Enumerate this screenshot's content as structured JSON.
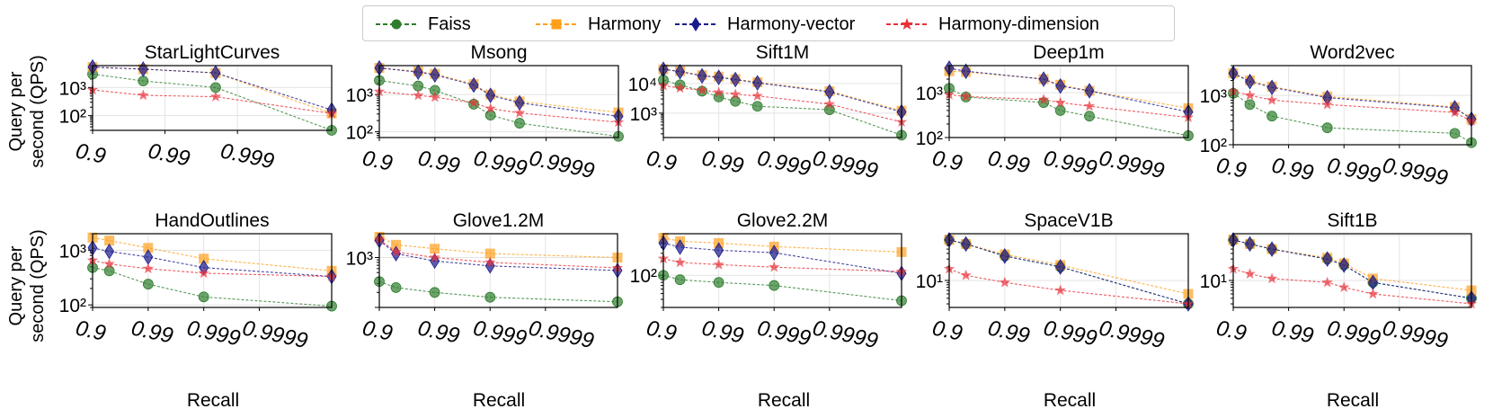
{
  "legend": {
    "items": [
      {
        "label": "Faiss",
        "color": "#2e7d2e",
        "marker": "circle"
      },
      {
        "label": "Harmony",
        "color": "#ff9f1c",
        "marker": "square"
      },
      {
        "label": "Harmony-vector",
        "color": "#1a1a8c",
        "marker": "diamond"
      },
      {
        "label": "Harmony-dimension",
        "color": "#e8323a",
        "marker": "star"
      }
    ]
  },
  "y_axis_label": [
    "Query per",
    "second (QPS)"
  ],
  "x_axis_label": "Recall",
  "chart_data": [
    {
      "type": "line",
      "title": "StarLightCurves",
      "xscale": "nines",
      "xlim": [
        0.9,
        0.99995
      ],
      "yscale": "log",
      "ylim": [
        30,
        6000
      ],
      "xticks": [
        "0.9",
        "0.99",
        "0.999"
      ],
      "yticks": [
        {
          "v": 100,
          "label": "10^2"
        },
        {
          "v": 1000,
          "label": "10^3"
        }
      ],
      "series": [
        {
          "name": "Faiss",
          "x": [
            0.9,
            0.98,
            0.998,
            0.99995
          ],
          "y": [
            3000,
            1700,
            1000,
            30
          ]
        },
        {
          "name": "Harmony",
          "x": [
            0.9,
            0.98,
            0.998,
            0.99995
          ],
          "y": [
            5300,
            4500,
            3300,
            120
          ]
        },
        {
          "name": "Harmony-vector",
          "x": [
            0.9,
            0.98,
            0.998,
            0.99995
          ],
          "y": [
            5300,
            4500,
            3300,
            160
          ]
        },
        {
          "name": "Harmony-dimension",
          "x": [
            0.9,
            0.98,
            0.998,
            0.99995
          ],
          "y": [
            820,
            530,
            470,
            120
          ]
        }
      ]
    },
    {
      "type": "line",
      "title": "Msong",
      "xscale": "nines",
      "xlim": [
        0.9,
        0.999995
      ],
      "yscale": "log",
      "ylim": [
        70,
        6000
      ],
      "xticks": [
        "0.9",
        "0.99",
        "0.999",
        "0.9999"
      ],
      "yticks": [
        {
          "v": 100,
          "label": "10^2"
        },
        {
          "v": 1000,
          "label": "10^3"
        }
      ],
      "series": [
        {
          "name": "Faiss",
          "x": [
            0.9,
            0.98,
            0.99,
            0.998,
            0.999,
            0.9997,
            0.999995
          ],
          "y": [
            2400,
            1700,
            1300,
            550,
            280,
            170,
            75
          ]
        },
        {
          "name": "Harmony",
          "x": [
            0.9,
            0.98,
            0.99,
            0.998,
            0.999,
            0.9997,
            0.999995
          ],
          "y": [
            5200,
            4200,
            3600,
            1900,
            1000,
            650,
            330
          ]
        },
        {
          "name": "Harmony-vector",
          "x": [
            0.9,
            0.98,
            0.99,
            0.998,
            0.999,
            0.9997,
            0.999995
          ],
          "y": [
            5200,
            4000,
            3400,
            1800,
            950,
            600,
            260
          ]
        },
        {
          "name": "Harmony-dimension",
          "x": [
            0.9,
            0.98,
            0.99,
            0.998,
            0.999,
            0.9997,
            0.999995
          ],
          "y": [
            1200,
            950,
            850,
            600,
            420,
            320,
            180
          ]
        }
      ]
    },
    {
      "type": "line",
      "title": "Sift1M",
      "xscale": "nines",
      "xlim": [
        0.9,
        0.999995
      ],
      "yscale": "log",
      "ylim": [
        150,
        40000
      ],
      "xticks": [
        "0.9",
        "0.99",
        "0.999",
        "0.9999"
      ],
      "yticks": [
        {
          "v": 1000,
          "label": "10^3"
        },
        {
          "v": 10000,
          "label": "10^4"
        }
      ],
      "series": [
        {
          "name": "Faiss",
          "x": [
            0.9,
            0.95,
            0.98,
            0.99,
            0.995,
            0.998,
            0.9999,
            0.999995
          ],
          "y": [
            13000,
            9000,
            5500,
            3500,
            2500,
            1700,
            1300,
            180
          ]
        },
        {
          "name": "Harmony",
          "x": [
            0.9,
            0.95,
            0.98,
            0.99,
            0.995,
            0.998,
            0.9999,
            0.999995
          ],
          "y": [
            30000,
            26000,
            19000,
            17000,
            14000,
            11000,
            5500,
            1200
          ]
        },
        {
          "name": "Harmony-vector",
          "x": [
            0.9,
            0.95,
            0.98,
            0.99,
            0.995,
            0.998,
            0.9999,
            0.999995
          ],
          "y": [
            30000,
            25000,
            18000,
            16000,
            13500,
            10500,
            5200,
            1100
          ]
        },
        {
          "name": "Harmony-dimension",
          "x": [
            0.9,
            0.95,
            0.98,
            0.99,
            0.995,
            0.998,
            0.9999,
            0.999995
          ],
          "y": [
            8500,
            7000,
            6000,
            5000,
            4300,
            3800,
            2000,
            500
          ]
        }
      ]
    },
    {
      "type": "line",
      "title": "Deep1m",
      "xscale": "nines",
      "xlim": [
        0.9,
        0.999995
      ],
      "yscale": "log",
      "ylim": [
        100,
        4000
      ],
      "xticks": [
        "0.9",
        "0.99",
        "0.999",
        "0.9999"
      ],
      "yticks": [
        {
          "v": 100,
          "label": "10^2"
        },
        {
          "v": 1000,
          "label": "10^3"
        }
      ],
      "series": [
        {
          "name": "Faiss",
          "x": [
            0.9,
            0.95,
            0.998,
            0.999,
            0.9997,
            0.999995
          ],
          "y": [
            1250,
            800,
            600,
            400,
            300,
            110
          ]
        },
        {
          "name": "Harmony",
          "x": [
            0.9,
            0.95,
            0.998,
            0.999,
            0.9997,
            0.999995
          ],
          "y": [
            3000,
            2900,
            2000,
            1500,
            1100,
            450
          ]
        },
        {
          "name": "Harmony-vector",
          "x": [
            0.9,
            0.95,
            0.998,
            0.999,
            0.9997,
            0.999995
          ],
          "y": [
            3500,
            3000,
            2000,
            1400,
            1100,
            370
          ]
        },
        {
          "name": "Harmony-dimension",
          "x": [
            0.9,
            0.95,
            0.998,
            0.999,
            0.9997,
            0.999995
          ],
          "y": [
            900,
            820,
            700,
            600,
            500,
            280
          ]
        }
      ]
    },
    {
      "type": "line",
      "title": "Word2vec",
      "xscale": "nines",
      "xlim": [
        0.9,
        0.999995
      ],
      "yscale": "log",
      "ylim": [
        100,
        4000
      ],
      "xticks": [
        "0.9",
        "0.99",
        "0.999",
        "0.9999"
      ],
      "yticks": [
        {
          "v": 100,
          "label": "10^2"
        },
        {
          "v": 1000,
          "label": "10^3"
        }
      ],
      "series": [
        {
          "name": "Faiss",
          "x": [
            0.9,
            0.95,
            0.98,
            0.998,
            0.99999,
            0.999995
          ],
          "y": [
            1100,
            650,
            380,
            220,
            170,
            110
          ]
        },
        {
          "name": "Harmony",
          "x": [
            0.9,
            0.95,
            0.98,
            0.998,
            0.99999,
            0.999995
          ],
          "y": [
            2800,
            2000,
            1500,
            950,
            580,
            330
          ]
        },
        {
          "name": "Harmony-vector",
          "x": [
            0.9,
            0.95,
            0.98,
            0.998,
            0.99999,
            0.999995
          ],
          "y": [
            2800,
            1900,
            1450,
            900,
            560,
            330
          ]
        },
        {
          "name": "Harmony-dimension",
          "x": [
            0.9,
            0.95,
            0.98,
            0.998,
            0.99999,
            0.999995
          ],
          "y": [
            1200,
            1000,
            800,
            650,
            450,
            300
          ]
        }
      ]
    },
    {
      "type": "line",
      "title": "HandOutlines",
      "xscale": "nines",
      "xlim": [
        0.9,
        0.999995
      ],
      "yscale": "log",
      "ylim": [
        90,
        2000
      ],
      "xticks": [
        "0.9",
        "0.99",
        "0.999",
        "0.9999"
      ],
      "yticks": [
        {
          "v": 100,
          "label": "10^2"
        },
        {
          "v": 1000,
          "label": "10^3"
        }
      ],
      "series": [
        {
          "name": "Faiss",
          "x": [
            0.9,
            0.95,
            0.99,
            0.999,
            0.999995
          ],
          "y": [
            480,
            420,
            240,
            140,
            95
          ]
        },
        {
          "name": "Harmony",
          "x": [
            0.9,
            0.95,
            0.99,
            0.999,
            0.999995
          ],
          "y": [
            1700,
            1500,
            1100,
            700,
            420
          ]
        },
        {
          "name": "Harmony-vector",
          "x": [
            0.9,
            0.95,
            0.99,
            0.999,
            0.999995
          ],
          "y": [
            1100,
            950,
            750,
            480,
            330
          ]
        },
        {
          "name": "Harmony-dimension",
          "x": [
            0.9,
            0.95,
            0.99,
            0.999,
            0.999995
          ],
          "y": [
            650,
            560,
            460,
            380,
            330
          ]
        }
      ]
    },
    {
      "type": "line",
      "title": "Glove1.2M",
      "xscale": "nines",
      "xlim": [
        0.9,
        0.999995
      ],
      "yscale": "log",
      "ylim": [
        100,
        3000
      ],
      "xticks": [
        "0.9",
        "0.99",
        "0.999",
        "0.9999"
      ],
      "yticks": [
        {
          "v": 1000,
          "label": "10^3"
        }
      ],
      "series": [
        {
          "name": "Faiss",
          "x": [
            0.9,
            0.95,
            0.99,
            0.999,
            0.999995
          ],
          "y": [
            330,
            250,
            200,
            160,
            130
          ]
        },
        {
          "name": "Harmony",
          "x": [
            0.9,
            0.95,
            0.99,
            0.999,
            0.999995
          ],
          "y": [
            2600,
            1800,
            1500,
            1200,
            1000
          ]
        },
        {
          "name": "Harmony-vector",
          "x": [
            0.9,
            0.95,
            0.99,
            0.999,
            0.999995
          ],
          "y": [
            2200,
            1200,
            850,
            680,
            550
          ]
        },
        {
          "name": "Harmony-dimension",
          "x": [
            0.9,
            0.95,
            0.99,
            0.999,
            0.999995
          ],
          "y": [
            2300,
            1300,
            1000,
            800,
            620
          ]
        }
      ]
    },
    {
      "type": "line",
      "title": "Glove2.2M",
      "xscale": "nines",
      "xlim": [
        0.9,
        0.999995
      ],
      "yscale": "log",
      "ylim": [
        20,
        800
      ],
      "xticks": [
        "0.9",
        "0.99",
        "0.999",
        "0.9999"
      ],
      "yticks": [
        {
          "v": 100,
          "label": "10^2"
        }
      ],
      "series": [
        {
          "name": "Faiss",
          "x": [
            0.9,
            0.95,
            0.99,
            0.999,
            0.999995
          ],
          "y": [
            100,
            80,
            70,
            60,
            28
          ]
        },
        {
          "name": "Harmony",
          "x": [
            0.9,
            0.95,
            0.99,
            0.999,
            0.999995
          ],
          "y": [
            650,
            550,
            500,
            420,
            320
          ]
        },
        {
          "name": "Harmony-vector",
          "x": [
            0.9,
            0.95,
            0.99,
            0.999,
            0.999995
          ],
          "y": [
            500,
            410,
            350,
            310,
            110
          ]
        },
        {
          "name": "Harmony-dimension",
          "x": [
            0.9,
            0.95,
            0.99,
            0.999,
            0.999995
          ],
          "y": [
            230,
            190,
            170,
            150,
            120
          ]
        }
      ]
    },
    {
      "type": "line",
      "title": "SpaceV1B",
      "xscale": "nines",
      "xlim": [
        0.9,
        0.999995
      ],
      "yscale": "log",
      "ylim": [
        2.5,
        110
      ],
      "xticks": [
        "0.9",
        "0.99",
        "0.999",
        "0.9999"
      ],
      "yticks": [
        {
          "v": 10,
          "label": "10^1"
        }
      ],
      "series": [
        {
          "name": "Faiss",
          "x": [
            0.9,
            0.95,
            0.99,
            0.999,
            0.999995
          ],
          "y": [
            80,
            65,
            35,
            20,
            3
          ]
        },
        {
          "name": "Harmony",
          "x": [
            0.9,
            0.95,
            0.99,
            0.999,
            0.999995
          ],
          "y": [
            80,
            65,
            38,
            22,
            5
          ]
        },
        {
          "name": "Harmony-vector",
          "x": [
            0.9,
            0.95,
            0.99,
            0.999,
            0.999995
          ],
          "y": [
            80,
            65,
            35,
            20,
            3
          ]
        },
        {
          "name": "Harmony-dimension",
          "x": [
            0.9,
            0.95,
            0.99,
            0.999,
            0.999995
          ],
          "y": [
            18,
            13,
            9,
            6,
            3
          ]
        }
      ]
    },
    {
      "type": "line",
      "title": "Sift1B",
      "xscale": "nines",
      "xlim": [
        0.9,
        0.999995
      ],
      "yscale": "log",
      "ylim": [
        2.5,
        110
      ],
      "xticks": [
        "0.9",
        "0.99",
        "0.999",
        "0.9999"
      ],
      "yticks": [
        {
          "v": 10,
          "label": "10^1"
        }
      ],
      "series": [
        {
          "name": "Faiss",
          "x": [
            0.9,
            0.95,
            0.98,
            0.998,
            0.999,
            0.9997,
            0.999995
          ],
          "y": [
            80,
            65,
            50,
            30,
            22,
            9,
            4
          ]
        },
        {
          "name": "Harmony",
          "x": [
            0.9,
            0.95,
            0.98,
            0.998,
            0.999,
            0.9997,
            0.999995
          ],
          "y": [
            80,
            65,
            50,
            32,
            24,
            11,
            6
          ]
        },
        {
          "name": "Harmony-vector",
          "x": [
            0.9,
            0.95,
            0.98,
            0.998,
            0.999,
            0.9997,
            0.999995
          ],
          "y": [
            80,
            65,
            50,
            30,
            22,
            9,
            4
          ]
        },
        {
          "name": "Harmony-dimension",
          "x": [
            0.9,
            0.95,
            0.98,
            0.998,
            0.999,
            0.9997,
            0.999995
          ],
          "y": [
            18,
            14,
            11,
            9,
            7,
            5,
            3
          ]
        }
      ]
    }
  ]
}
